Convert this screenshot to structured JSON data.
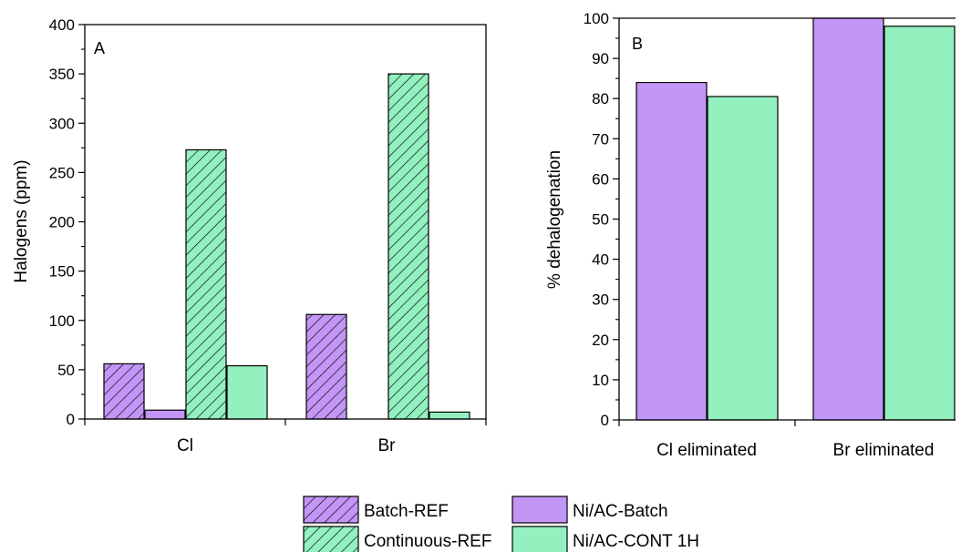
{
  "chart_data": [
    {
      "type": "bar",
      "panel_label": "A",
      "ylabel": "Halogens (ppm)",
      "xlabel": "",
      "ylim": [
        0,
        400
      ],
      "yticks": [
        0,
        50,
        100,
        150,
        200,
        250,
        300,
        350,
        400
      ],
      "categories": [
        "Cl",
        "Br"
      ],
      "series": [
        {
          "name": "Batch-REF",
          "values": [
            56,
            106
          ],
          "pattern": "hatch",
          "color": "#c395f6"
        },
        {
          "name": "Ni/AC-Batch",
          "values": [
            9,
            0
          ],
          "pattern": "solid",
          "color": "#c395f6"
        },
        {
          "name": "Continuous-REF",
          "values": [
            273,
            350
          ],
          "pattern": "hatch",
          "color": "#93f0bf"
        },
        {
          "name": "Ni/AC-CONT 1H",
          "values": [
            54,
            7
          ],
          "pattern": "solid",
          "color": "#93f0bf"
        }
      ],
      "grid": false
    },
    {
      "type": "bar",
      "panel_label": "B",
      "ylabel": "% dehalogenation",
      "xlabel": "",
      "ylim": [
        0,
        100
      ],
      "yticks": [
        0,
        10,
        20,
        30,
        40,
        50,
        60,
        70,
        80,
        90,
        100
      ],
      "categories": [
        "Cl eliminated",
        "Br eliminated"
      ],
      "series": [
        {
          "name": "Ni/AC-Batch",
          "values": [
            84,
            100
          ],
          "pattern": "solid",
          "color": "#c395f6"
        },
        {
          "name": "Ni/AC-CONT 1H",
          "values": [
            80.5,
            98
          ],
          "pattern": "solid",
          "color": "#93f0bf"
        }
      ],
      "grid": false
    }
  ],
  "legend": {
    "position": "bottom-center",
    "entries": [
      {
        "label": "Batch-REF",
        "pattern": "hatch",
        "color": "#c395f6"
      },
      {
        "label": "Ni/AC-Batch",
        "pattern": "solid",
        "color": "#c395f6"
      },
      {
        "label": "Continuous-REF",
        "pattern": "hatch",
        "color": "#93f0bf"
      },
      {
        "label": "Ni/AC-CONT 1H",
        "pattern": "solid",
        "color": "#93f0bf"
      }
    ]
  }
}
